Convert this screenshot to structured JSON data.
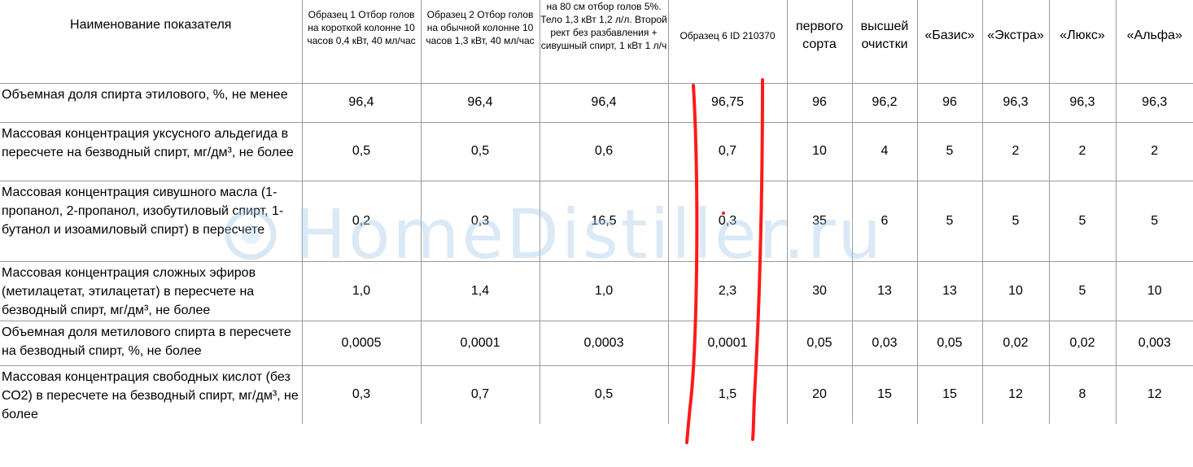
{
  "table": {
    "headers": [
      "Наименование показателя",
      "Образец 1 Отбор голов на короткой колонне 10 часов 0,4 кВт, 40 мл/час",
      "Образец 2 Отбор голов на обычной колонне 10 часов 1,3 кВт, 40 мл/час",
      "на 80 см отбор голов 5%. Тело 1,3 кВт 1,2 л/л. Второй рект без разбавления + сивушный спирт, 1 кВт 1 л/ч",
      "Образец 6 ID 210370",
      "первого сорта",
      "высшей очистки",
      "«Базис»",
      "«Экстра»",
      "«Люкс»",
      "«Альфа»"
    ],
    "rows": [
      {
        "label": "Объемная доля спирта этилового, %, не менее",
        "values": [
          "96,4",
          "96,4",
          "96,4",
          "96,75",
          "96",
          "96,2",
          "96",
          "96,3",
          "96,3",
          "96,3"
        ]
      },
      {
        "label": "Массовая концентрация уксусного альдегида в пересчете на безводный спирт, мг/дм³, не более",
        "values": [
          "0,5",
          "0,5",
          "0,6",
          "0,7",
          "10",
          "4",
          "5",
          "2",
          "2",
          "2"
        ]
      },
      {
        "label": "Массовая концентрация сивушного масла (1-пропанол, 2-пропанол, изобутиловый спирт, 1-бутанол и изоамиловый спирт) в пересчете",
        "values": [
          "0,2",
          "0,3",
          "16,5",
          "0,3",
          "35",
          "6",
          "5",
          "5",
          "5",
          "5"
        ]
      },
      {
        "label": "Массовая концентрация сложных эфиров (метилацетат, этилацетат) в пересчете на безводный спирт, мг/дм³, не более",
        "values": [
          "1,0",
          "1,4",
          "1,0",
          "2,3",
          "30",
          "13",
          "13",
          "10",
          "5",
          "10"
        ]
      },
      {
        "label": "Объемная доля метилового спирта в пересчете на безводный спирт, %, не более",
        "values": [
          "0,0005",
          "0,0001",
          "0,0003",
          "0,0001",
          "0,05",
          "0,03",
          "0,05",
          "0,02",
          "0,02",
          "0,003"
        ]
      },
      {
        "label": "Массовая концентрация свободных кислот (без СО2) в пересчете на безводный спирт, мг/дм³, не более",
        "values": [
          "0,3",
          "0,7",
          "0,5",
          "1,5",
          "20",
          "15",
          "15",
          "12",
          "8",
          "12"
        ]
      }
    ]
  },
  "watermark": {
    "text": "HomeDistiller.ru",
    "color": "#9fc6e6"
  },
  "annotation": {
    "color": "#ff1a1a",
    "description_icon": "red-pen-marks"
  }
}
